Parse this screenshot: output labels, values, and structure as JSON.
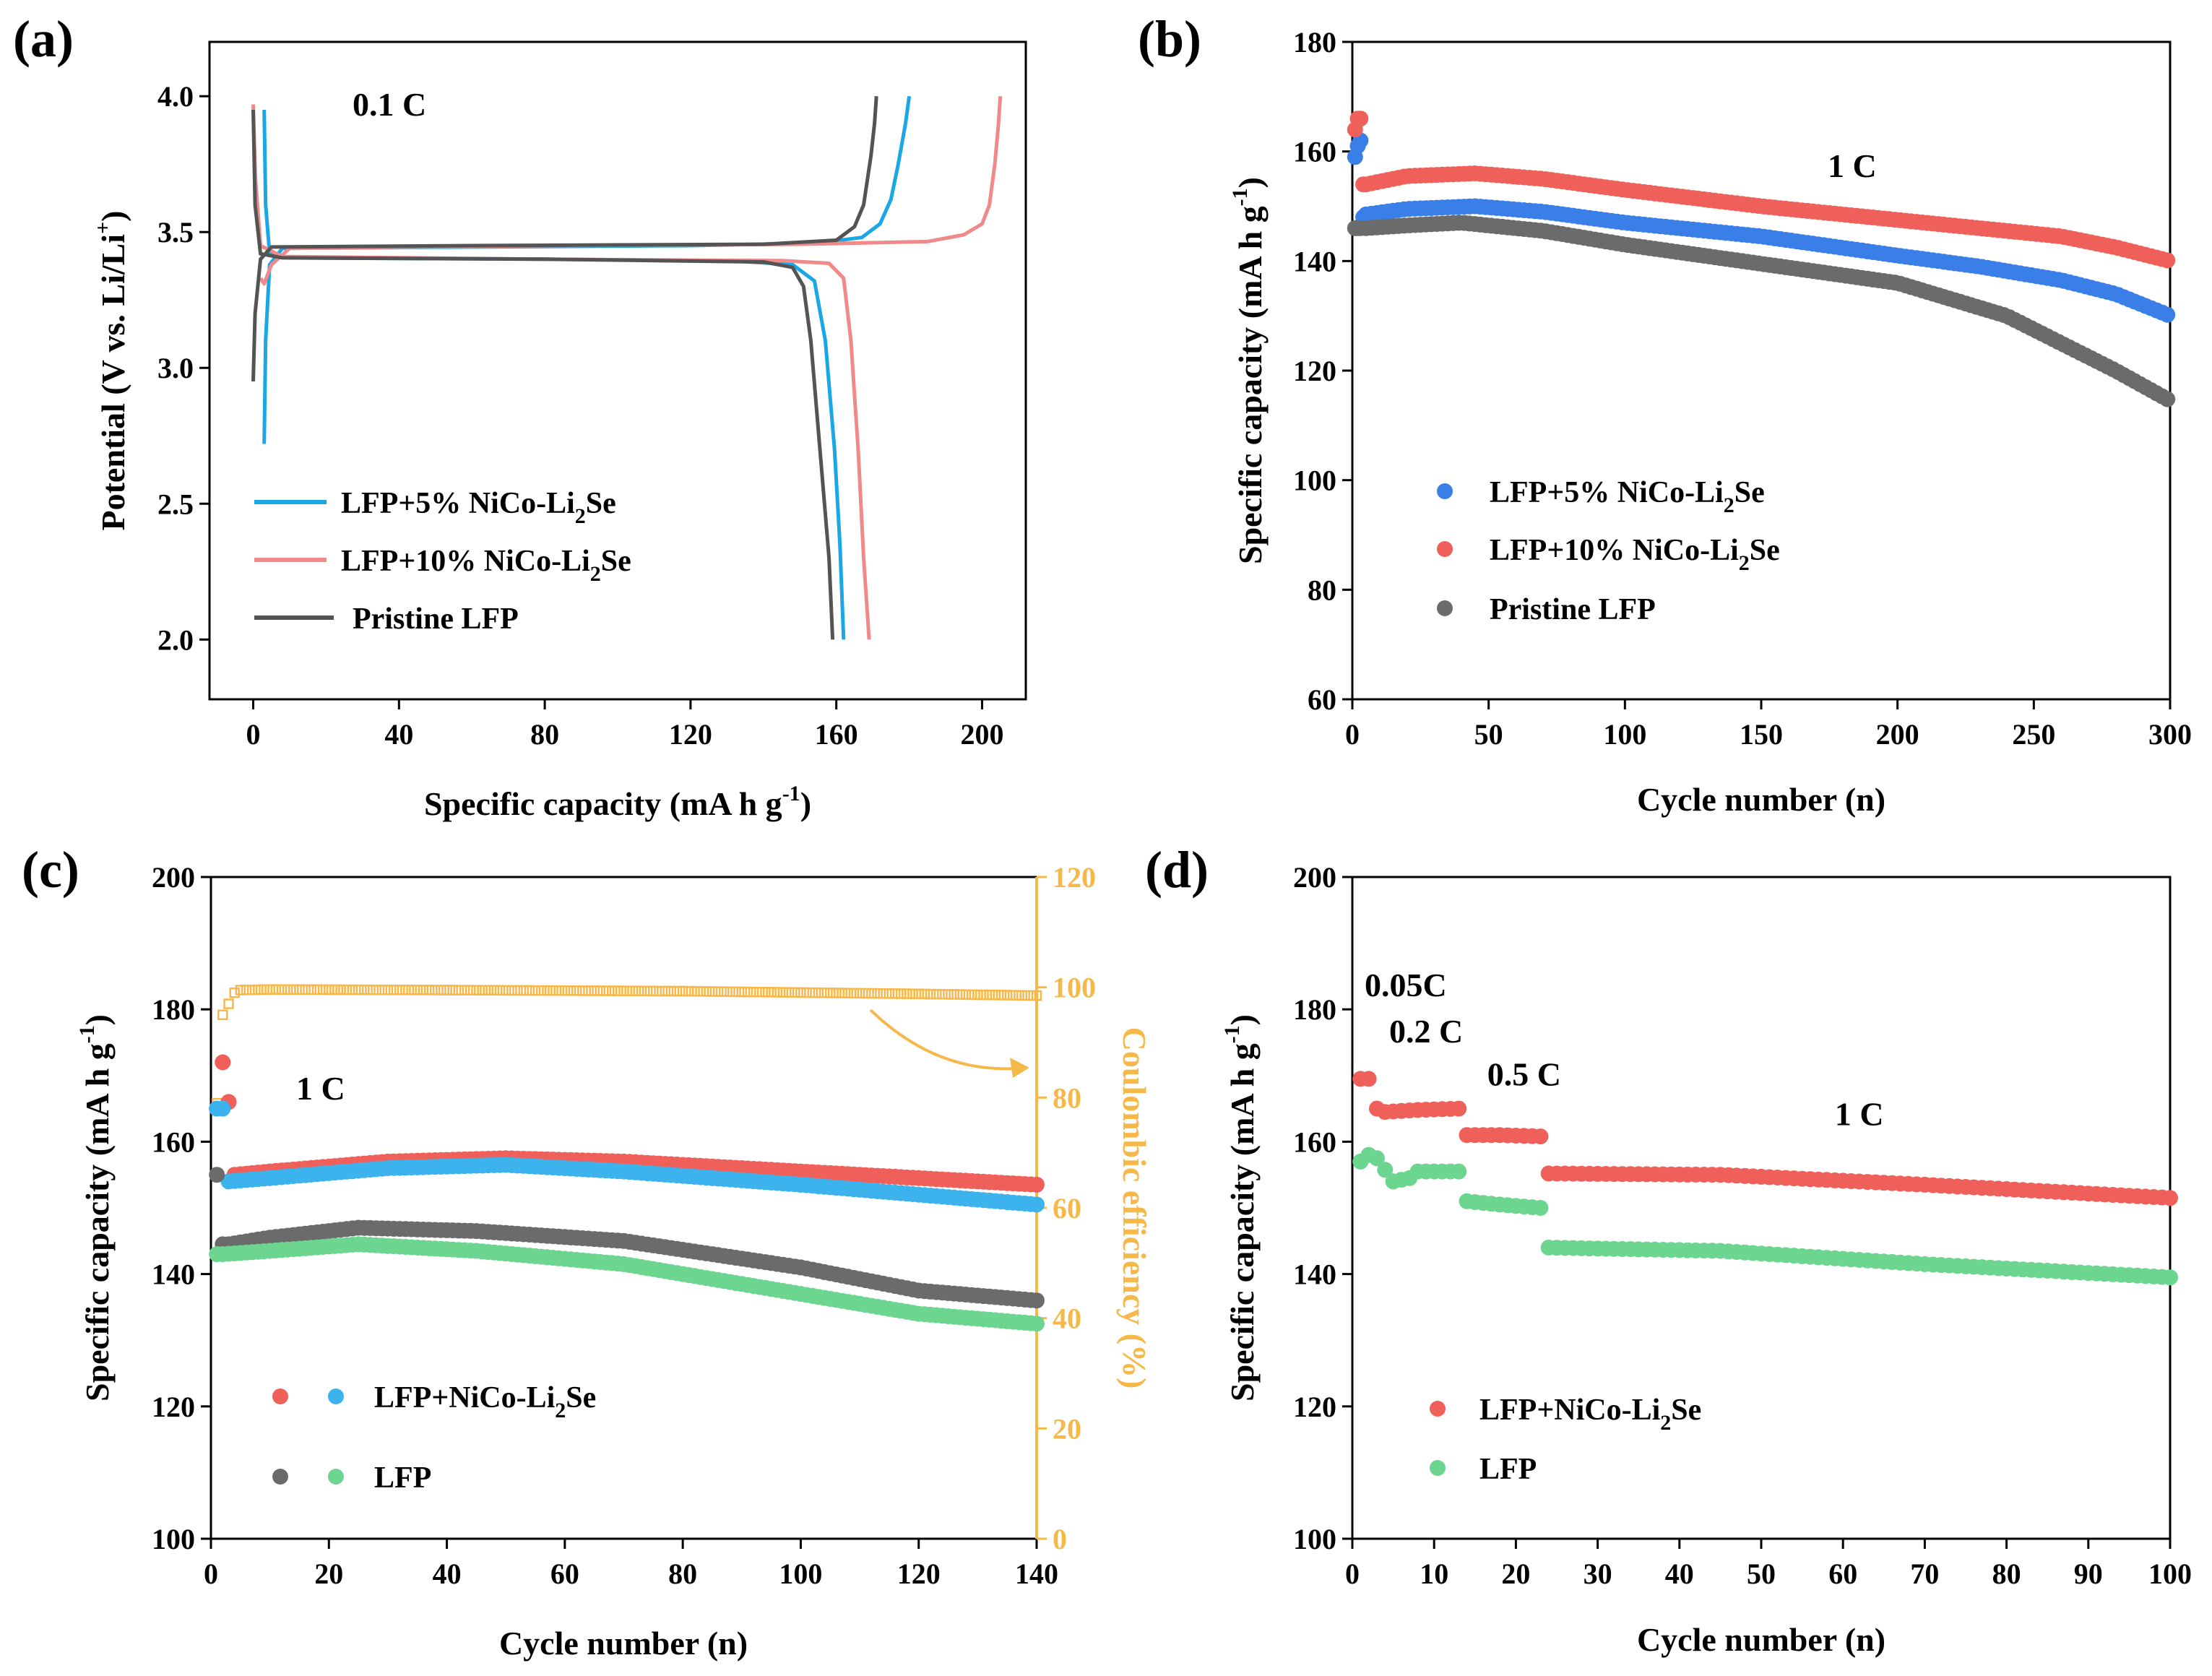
{
  "colors": {
    "blue": "#1aa7e6",
    "pink": "#f08a8a",
    "gray": "#545454",
    "blue_dot": "#3a7fe8",
    "red_dot": "#f0605a",
    "gray_dot": "#6b6b6b",
    "sky_dot": "#3db3ee",
    "green_dot": "#6cd58f",
    "orange": "#f7b84a"
  },
  "chart_data": [
    {
      "panel_label": "(a)",
      "type": "line",
      "title": "",
      "annotation": "0.1 C",
      "xlabel": "Specific capacity (mA h g",
      "xlabel_sup": "-1",
      "xlabel_end": ")",
      "ylabel": "Potential (V vs. Li/Li",
      "ylabel_sup": "+",
      "ylabel_end": ")",
      "xlim": [
        -12,
        212
      ],
      "ylim": [
        1.78,
        4.2
      ],
      "xticks": [
        0,
        40,
        80,
        120,
        160,
        200
      ],
      "yticks": [
        2.0,
        2.5,
        3.0,
        3.5,
        4.0
      ],
      "ytick_labels": [
        "2.0",
        "2.5",
        "3.0",
        "3.5",
        "4.0"
      ],
      "series": [
        {
          "name": "LFP+5% NiCo-Li2Se",
          "legend_main": "LFP+5% NiCo-Li",
          "legend_sub": "2",
          "legend_end": "Se",
          "color_key": "blue",
          "charge": [
            [
              3,
              2.72
            ],
            [
              3.4,
              3.1
            ],
            [
              4.5,
              3.38
            ],
            [
              8,
              3.44
            ],
            [
              60,
              3.445
            ],
            [
              120,
              3.45
            ],
            [
              155,
              3.46
            ],
            [
              167,
              3.48
            ],
            [
              172,
              3.53
            ],
            [
              175,
              3.62
            ],
            [
              177,
              3.75
            ],
            [
              179,
              3.9
            ],
            [
              180,
              4.0
            ]
          ],
          "discharge": [
            [
              3,
              3.95
            ],
            [
              3.4,
              3.6
            ],
            [
              4.5,
              3.42
            ],
            [
              10,
              3.405
            ],
            [
              80,
              3.4
            ],
            [
              130,
              3.395
            ],
            [
              148,
              3.38
            ],
            [
              154,
              3.32
            ],
            [
              157,
              3.1
            ],
            [
              159.5,
              2.7
            ],
            [
              161,
              2.35
            ],
            [
              162,
              2.0
            ]
          ]
        },
        {
          "name": "LFP+10% NiCo-Li2Se",
          "legend_main": "LFP+10% NiCo-Li",
          "legend_sub": "2",
          "legend_end": "Se",
          "color_key": "pink",
          "charge": [
            [
              2,
              3.33
            ],
            [
              3,
              3.31
            ],
            [
              5,
              3.38
            ],
            [
              10,
              3.44
            ],
            [
              80,
              3.45
            ],
            [
              150,
              3.455
            ],
            [
              185,
              3.465
            ],
            [
              195,
              3.49
            ],
            [
              200,
              3.53
            ],
            [
              202,
              3.6
            ],
            [
              203.5,
              3.75
            ],
            [
              204.5,
              3.9
            ],
            [
              205,
              4.0
            ]
          ],
          "discharge": [
            [
              0,
              3.97
            ],
            [
              0.6,
              3.7
            ],
            [
              2,
              3.45
            ],
            [
              8,
              3.41
            ],
            [
              80,
              3.4
            ],
            [
              145,
              3.395
            ],
            [
              158,
              3.385
            ],
            [
              162,
              3.33
            ],
            [
              164,
              3.1
            ],
            [
              166,
              2.7
            ],
            [
              167.5,
              2.3
            ],
            [
              169,
              2.0
            ]
          ]
        },
        {
          "name": "Pristine LFP",
          "legend_main": "Pristine LFP",
          "legend_sub": "",
          "legend_end": "",
          "color_key": "gray",
          "charge": [
            [
              0,
              2.95
            ],
            [
              0.5,
              3.2
            ],
            [
              2,
              3.4
            ],
            [
              5,
              3.445
            ],
            [
              60,
              3.45
            ],
            [
              140,
              3.455
            ],
            [
              160,
              3.47
            ],
            [
              165,
              3.52
            ],
            [
              167.5,
              3.6
            ],
            [
              169.5,
              3.78
            ],
            [
              170.5,
              3.9
            ],
            [
              171,
              4.0
            ]
          ],
          "discharge": [
            [
              0,
              3.95
            ],
            [
              0.5,
              3.6
            ],
            [
              2,
              3.42
            ],
            [
              8,
              3.405
            ],
            [
              80,
              3.4
            ],
            [
              140,
              3.39
            ],
            [
              148,
              3.37
            ],
            [
              151,
              3.3
            ],
            [
              153,
              3.1
            ],
            [
              155.5,
              2.7
            ],
            [
              158,
              2.3
            ],
            [
              159,
              2.0
            ]
          ]
        }
      ]
    },
    {
      "panel_label": "(b)",
      "type": "scatter",
      "annotation": "1 C",
      "xlabel": "Cycle number (n)",
      "ylabel": "Specific capacity (mA h g",
      "ylabel_sup": "-1",
      "ylabel_end": ")",
      "xlim": [
        0,
        300
      ],
      "ylim": [
        60,
        180
      ],
      "xticks": [
        0,
        50,
        100,
        150,
        200,
        250,
        300
      ],
      "yticks": [
        60,
        80,
        100,
        120,
        140,
        160,
        180
      ],
      "series": [
        {
          "name": "LFP+5% NiCo-Li2Se",
          "legend_main": "LFP+5% NiCo-Li",
          "legend_sub": "2",
          "legend_end": "Se",
          "color_key": "blue_dot",
          "initial": [
            [
              1,
              159
            ],
            [
              2,
              161
            ],
            [
              3,
              162
            ],
            [
              4,
              148
            ]
          ],
          "curve": [
            [
              5,
              148.5
            ],
            [
              20,
              149.5
            ],
            [
              45,
              150
            ],
            [
              70,
              149
            ],
            [
              100,
              147
            ],
            [
              150,
              144.5
            ],
            [
              200,
              141
            ],
            [
              230,
              139
            ],
            [
              260,
              136.5
            ],
            [
              280,
              134
            ],
            [
              300,
              130
            ]
          ]
        },
        {
          "name": "LFP+10% NiCo-Li2Se",
          "legend_main": "LFP+10% NiCo-Li",
          "legend_sub": "2",
          "legend_end": "Se",
          "color_key": "red_dot",
          "initial": [
            [
              1,
              164
            ],
            [
              2,
              166
            ],
            [
              3,
              166
            ],
            [
              4,
              154
            ]
          ],
          "curve": [
            [
              5,
              154
            ],
            [
              20,
              155.5
            ],
            [
              45,
              156
            ],
            [
              70,
              155
            ],
            [
              100,
              153
            ],
            [
              150,
              150
            ],
            [
              200,
              147.5
            ],
            [
              230,
              146
            ],
            [
              260,
              144.5
            ],
            [
              280,
              142.5
            ],
            [
              300,
              140
            ]
          ]
        },
        {
          "name": "Pristine LFP",
          "legend_main": "Pristine LFP",
          "legend_sub": "",
          "legend_end": "",
          "color_key": "gray_dot",
          "initial": [
            [
              1,
              146
            ],
            [
              2,
              146
            ],
            [
              3,
              146
            ]
          ],
          "curve": [
            [
              5,
              146
            ],
            [
              20,
              146.5
            ],
            [
              40,
              147
            ],
            [
              70,
              145.5
            ],
            [
              100,
              143
            ],
            [
              150,
              139.5
            ],
            [
              200,
              136
            ],
            [
              220,
              133
            ],
            [
              240,
              130
            ],
            [
              260,
              125
            ],
            [
              280,
              120
            ],
            [
              300,
              114.5
            ]
          ]
        }
      ]
    },
    {
      "panel_label": "(c)",
      "type": "scatter",
      "annotation": "1 C",
      "xlabel": "Cycle number (n)",
      "ylabel": "Specific capacity (mA h g",
      "ylabel_sup": "-1",
      "ylabel_end": ")",
      "y2label": "Coulombic efficiency (%)",
      "xlim": [
        0,
        140
      ],
      "ylim": [
        100,
        200
      ],
      "y2lim": [
        0,
        120
      ],
      "xticks": [
        0,
        20,
        40,
        60,
        80,
        100,
        120,
        140
      ],
      "yticks": [
        100,
        120,
        140,
        160,
        180,
        200
      ],
      "y2ticks": [
        0,
        20,
        40,
        60,
        80,
        100,
        120
      ],
      "legend": [
        {
          "label_main": "LFP+NiCo-Li",
          "label_sub": "2",
          "label_end": "Se",
          "color_keys": [
            "red_dot",
            "sky_dot"
          ]
        },
        {
          "label_main": "LFP",
          "label_sub": "",
          "label_end": "",
          "color_keys": [
            "gray_dot",
            "green_dot"
          ]
        }
      ],
      "series": [
        {
          "name": "LFP+NiCo-Li2Se (red)",
          "color_key": "red_dot",
          "initial": [
            [
              1,
              165
            ],
            [
              2,
              172
            ],
            [
              3,
              166
            ]
          ],
          "curve": [
            [
              4,
              155
            ],
            [
              10,
              155.5
            ],
            [
              30,
              157
            ],
            [
              50,
              157.5
            ],
            [
              70,
              157
            ],
            [
              100,
              155.5
            ],
            [
              120,
              154.5
            ],
            [
              140,
              153.5
            ]
          ]
        },
        {
          "name": "LFP+NiCo-Li2Se (blue)",
          "color_key": "sky_dot",
          "initial": [
            [
              1,
              165
            ],
            [
              2,
              165
            ]
          ],
          "curve": [
            [
              3,
              154
            ],
            [
              10,
              154.5
            ],
            [
              30,
              156
            ],
            [
              50,
              156.5
            ],
            [
              70,
              155.5
            ],
            [
              100,
              153.5
            ],
            [
              120,
              152
            ],
            [
              140,
              150.5
            ]
          ]
        },
        {
          "name": "LFP (gray)",
          "color_key": "gray_dot",
          "initial": [
            [
              1,
              155
            ],
            [
              2,
              144.5
            ]
          ],
          "curve": [
            [
              3,
              144.5
            ],
            [
              10,
              145.5
            ],
            [
              25,
              147
            ],
            [
              45,
              146.5
            ],
            [
              70,
              145
            ],
            [
              100,
              141
            ],
            [
              120,
              137.5
            ],
            [
              140,
              136
            ]
          ]
        },
        {
          "name": "LFP (green)",
          "color_key": "green_dot",
          "initial": [
            [
              1,
              143
            ]
          ],
          "curve": [
            [
              2,
              143
            ],
            [
              10,
              143.5
            ],
            [
              25,
              144.5
            ],
            [
              45,
              143.5
            ],
            [
              70,
              141.5
            ],
            [
              100,
              137
            ],
            [
              120,
              134
            ],
            [
              140,
              132.5
            ]
          ]
        }
      ],
      "ce_series": {
        "name": "Coulombic efficiency",
        "color_key": "orange",
        "points": [
          [
            1,
            79
          ],
          [
            2,
            95
          ],
          [
            3,
            97
          ],
          [
            4,
            99
          ],
          [
            5,
            99.5
          ],
          [
            10,
            99.6
          ],
          [
            40,
            99.5
          ],
          [
            80,
            99.3
          ],
          [
            120,
            98.8
          ],
          [
            140,
            98.5
          ]
        ]
      }
    },
    {
      "panel_label": "(d)",
      "type": "scatter",
      "xlabel": "Cycle number (n)",
      "ylabel": "Specific capacity (mA h g",
      "ylabel_sup": "-1",
      "ylabel_end": ")",
      "xlim": [
        0,
        100
      ],
      "ylim": [
        100,
        200
      ],
      "xticks": [
        0,
        10,
        20,
        30,
        40,
        50,
        60,
        70,
        80,
        90,
        100
      ],
      "yticks": [
        100,
        120,
        140,
        160,
        180,
        200
      ],
      "rate_labels": [
        {
          "text": "0.05C",
          "x": 1.5,
          "y": 182
        },
        {
          "text": "0.2 C",
          "x": 4.5,
          "y": 175
        },
        {
          "text": "0.5 C",
          "x": 16.5,
          "y": 168.5
        },
        {
          "text": "1 C",
          "x": 59,
          "y": 162.5
        }
      ],
      "series": [
        {
          "name": "LFP+NiCo-Li2Se",
          "legend_main": "LFP+NiCo-Li",
          "legend_sub": "2",
          "legend_end": "Se",
          "color_key": "red_dot",
          "segments": [
            [
              [
                1,
                169.5
              ],
              [
                2,
                169.5
              ]
            ],
            [
              [
                3,
                165
              ],
              [
                4,
                164.5
              ],
              [
                8,
                164.8
              ],
              [
                13,
                165
              ]
            ],
            [
              [
                14,
                161
              ],
              [
                18,
                161
              ],
              [
                23,
                160.8
              ]
            ],
            [
              [
                24,
                155.2
              ],
              [
                45,
                155
              ],
              [
                70,
                153.5
              ],
              [
                100,
                151.5
              ]
            ]
          ]
        },
        {
          "name": "LFP",
          "legend_main": "LFP",
          "legend_sub": "",
          "legend_end": "",
          "color_key": "green_dot",
          "segments": [
            [
              [
                1,
                157
              ],
              [
                2,
                158
              ]
            ],
            [
              [
                3,
                157.5
              ],
              [
                5,
                154
              ],
              [
                7,
                154.5
              ],
              [
                8,
                155.5
              ],
              [
                13,
                155.5
              ]
            ],
            [
              [
                14,
                151
              ],
              [
                18,
                150.5
              ],
              [
                23,
                150
              ]
            ],
            [
              [
                24,
                144
              ],
              [
                45,
                143.5
              ],
              [
                70,
                141.5
              ],
              [
                100,
                139.5
              ]
            ]
          ]
        }
      ]
    }
  ]
}
